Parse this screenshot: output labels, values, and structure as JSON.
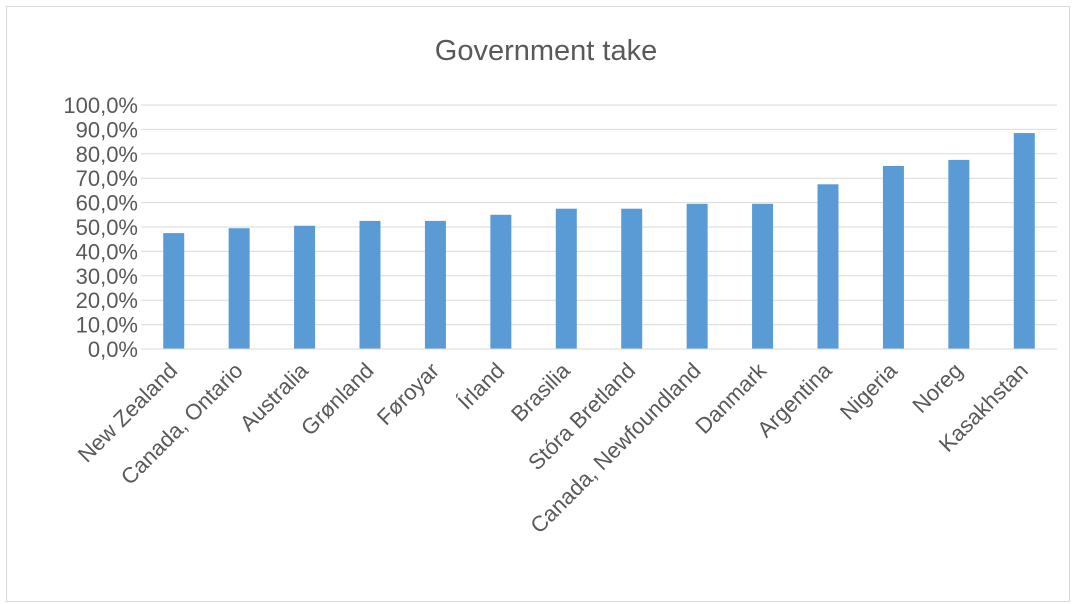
{
  "chart_data": {
    "type": "bar",
    "title": "Government take",
    "xlabel": "",
    "ylabel": "",
    "ylim": [
      0,
      100
    ],
    "yticks": [
      "0,0%",
      "10,0%",
      "20,0%",
      "30,0%",
      "40,0%",
      "50,0%",
      "60,0%",
      "70,0%",
      "80,0%",
      "90,0%",
      "100,0%"
    ],
    "grid": true,
    "legend": "none",
    "bar_color": "#5b9bd5",
    "categories": [
      "New Zealand",
      "Canada, Ontario",
      "Australia",
      "Grønland",
      "Føroyar",
      "Írland",
      "Brasilia",
      "Stóra Bretland",
      "Canada, Newfoundland",
      "Danmark",
      "Argentina",
      "Nigeria",
      "Noreg",
      "Kasakhstan"
    ],
    "values": [
      47.5,
      49.5,
      50.5,
      52.5,
      52.5,
      55,
      57.5,
      57.5,
      59.5,
      59.5,
      67.5,
      75,
      77.5,
      88.5
    ]
  }
}
